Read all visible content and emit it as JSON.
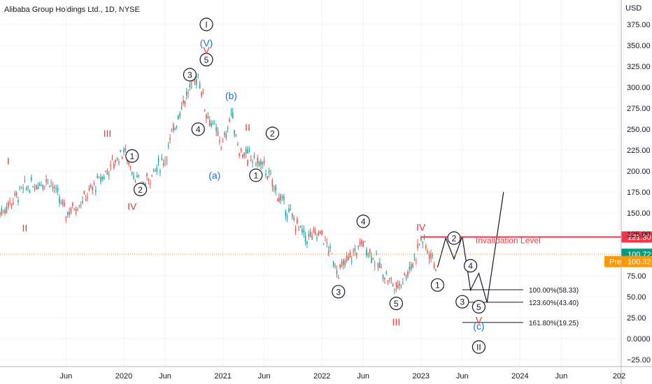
{
  "symbol_title": "Alibaba Group Holdings Ltd., 1D, NYSE",
  "currency": "USD",
  "colors": {
    "up": "#26a69a",
    "down": "#ef5350",
    "wave_red": "#e53935",
    "wave_blue": "#1e6fd9",
    "wave_black": "#131722",
    "invalidation": "#f23645",
    "current_price": "#089981",
    "pre_market": "#ff9800"
  },
  "chart_data": {
    "type": "line",
    "title": "Alibaba Group Holdings Ltd., 1D, NYSE",
    "ylabel": "USD",
    "ylim": [
      -30,
      400
    ],
    "grid": true,
    "y_ticks": [
      "375.00",
      "350.00",
      "325.00",
      "300.00",
      "275.00",
      "250.00",
      "225.00",
      "200.00",
      "175.00",
      "150.00",
      "125.00",
      "75.00",
      "50.00",
      "25.00",
      "0.0000",
      "−25.00"
    ],
    "y_tick_values": [
      375,
      350,
      325,
      300,
      275,
      250,
      225,
      200,
      175,
      150,
      125,
      75,
      50,
      25,
      0,
      -25
    ],
    "x_ticks": [
      "Jun",
      "2020",
      "Jun",
      "2021",
      "Jun",
      "2022",
      "Jun",
      "2023",
      "Jun",
      "2024",
      "Jun",
      "202"
    ],
    "x_tick_values": [
      "2019-06",
      "2020-01",
      "2020-06",
      "2021-01",
      "2021-06",
      "2022-01",
      "2022-06",
      "2023-01",
      "2023-06",
      "2024-01",
      "2024-06",
      "2025-01"
    ],
    "price_series": {
      "name": "BABA",
      "x": [
        "2018-10",
        "2019-01",
        "2019-04",
        "2019-06",
        "2019-08",
        "2019-11",
        "2020-01",
        "2020-03",
        "2020-06",
        "2020-08",
        "2020-10",
        "2020-11",
        "2021-01",
        "2021-02",
        "2021-03",
        "2021-06",
        "2021-08",
        "2021-11",
        "2022-01",
        "2022-03",
        "2022-06",
        "2022-08",
        "2022-10",
        "2022-12",
        "2023-01",
        "2023-03"
      ],
      "values": [
        150,
        180,
        190,
        150,
        165,
        200,
        225,
        180,
        215,
        280,
        315,
        270,
        230,
        270,
        225,
        205,
        165,
        120,
        125,
        80,
        115,
        85,
        60,
        90,
        120,
        85
      ]
    },
    "projection": {
      "name": "Projected path",
      "x": [
        "2023-03",
        "2023-04",
        "2023-05",
        "2023-06",
        "2023-07",
        "2023-08",
        "2023-09",
        "2023-11"
      ],
      "values": [
        85,
        120,
        95,
        122,
        58,
        78,
        43,
        175
      ]
    },
    "levels": [
      {
        "label": "Invalidation Level",
        "value": 121.3,
        "tag": "121.30"
      },
      {
        "label": "100.00%(58.33)",
        "value": 58.33
      },
      {
        "label": "123.60%(43.40)",
        "value": 43.4
      },
      {
        "label": "161.80%(19.25)",
        "value": 19.25
      }
    ],
    "current_price": {
      "value": 100.72,
      "tag": "100.72"
    },
    "pre_market": {
      "label": "Pre",
      "value": 100.32,
      "tag": "100.32"
    },
    "wave_labels": [
      {
        "text": "I",
        "color": "red",
        "circled": false,
        "x": "2018-11",
        "y": 212
      },
      {
        "text": "II",
        "color": "red",
        "circled": false,
        "x": "2019-01",
        "y": 132
      },
      {
        "text": "III",
        "color": "red",
        "circled": false,
        "x": "2019-11",
        "y": 245
      },
      {
        "text": "IV",
        "color": "red",
        "circled": false,
        "x": "2020-02",
        "y": 158
      },
      {
        "text": "1",
        "color": "black",
        "circled": true,
        "x": "2020-02",
        "y": 218
      },
      {
        "text": "2",
        "color": "black",
        "circled": true,
        "x": "2020-03",
        "y": 178
      },
      {
        "text": "3",
        "color": "black",
        "circled": true,
        "x": "2020-09",
        "y": 315
      },
      {
        "text": "4",
        "color": "black",
        "circled": true,
        "x": "2020-10",
        "y": 250
      },
      {
        "text": "5",
        "color": "black",
        "circled": true,
        "x": "2020-11",
        "y": 333
      },
      {
        "text": "(V)",
        "color": "blue",
        "circled": false,
        "x": "2020-11",
        "y": 353
      },
      {
        "text": "V",
        "color": "red",
        "circled": false,
        "x": "2020-11",
        "y": 344
      },
      {
        "text": "I",
        "color": "black",
        "circled": true,
        "x": "2020-11",
        "y": 375
      },
      {
        "text": "(a)",
        "color": "blue",
        "circled": false,
        "x": "2020-12",
        "y": 195
      },
      {
        "text": "(b)",
        "color": "blue",
        "circled": false,
        "x": "2021-02",
        "y": 290
      },
      {
        "text": "II",
        "color": "red",
        "circled": false,
        "x": "2021-04",
        "y": 252
      },
      {
        "text": "I",
        "color": "red",
        "circled": false,
        "x": "2021-04",
        "y": 210
      },
      {
        "text": "2",
        "color": "black",
        "circled": true,
        "x": "2021-07",
        "y": 245
      },
      {
        "text": "1",
        "color": "black",
        "circled": true,
        "x": "2021-05",
        "y": 195
      },
      {
        "text": "4",
        "color": "black",
        "circled": true,
        "x": "2022-06",
        "y": 140
      },
      {
        "text": "3",
        "color": "black",
        "circled": true,
        "x": "2022-03",
        "y": 56
      },
      {
        "text": "5",
        "color": "black",
        "circled": true,
        "x": "2022-10",
        "y": 42
      },
      {
        "text": "III",
        "color": "red",
        "circled": false,
        "x": "2022-10",
        "y": 20
      },
      {
        "text": "IV",
        "color": "red",
        "circled": false,
        "x": "2023-01",
        "y": 133
      },
      {
        "text": "1",
        "color": "black",
        "circled": true,
        "x": "2023-03",
        "y": 64
      },
      {
        "text": "2",
        "color": "black",
        "circled": true,
        "x": "2023-05",
        "y": 120
      },
      {
        "text": "4",
        "color": "black",
        "circled": true,
        "x": "2023-07",
        "y": 87
      },
      {
        "text": "3",
        "color": "black",
        "circled": true,
        "x": "2023-06",
        "y": 44
      },
      {
        "text": "5",
        "color": "black",
        "circled": true,
        "x": "2023-08",
        "y": 38
      },
      {
        "text": "V",
        "color": "red",
        "circled": false,
        "x": "2023-08",
        "y": 22
      },
      {
        "text": "(c)",
        "color": "blue",
        "circled": false,
        "x": "2023-08",
        "y": 15
      },
      {
        "text": "II",
        "color": "black",
        "circled": true,
        "x": "2023-08",
        "y": -10
      }
    ]
  }
}
